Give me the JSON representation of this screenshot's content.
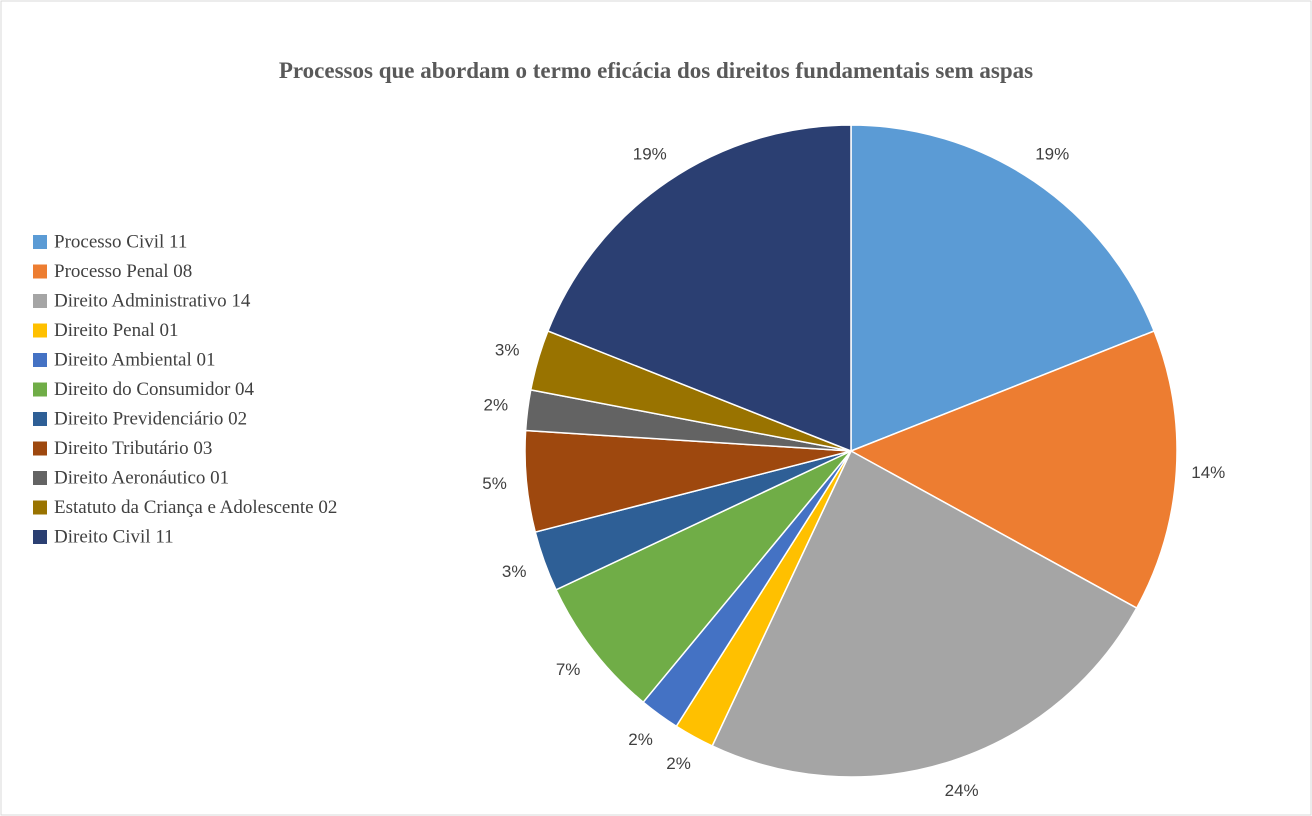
{
  "chart_data": {
    "type": "pie",
    "title": "Processos que abordam o termo eficácia dos direitos fundamentais sem aspas",
    "categories": [
      "Processo Civil 11",
      "Processo Penal 08",
      "Direito Administrativo 14",
      "Direito Penal 01",
      "Direito Ambiental 01",
      "Direito do Consumidor 04",
      "Direito Previdenciário 02",
      "Direito Tributário 03",
      "Direito Aeronáutico 01",
      "Estatuto da Criança e Adolescente 02",
      "Direito Civil 11"
    ],
    "values": [
      19,
      14,
      24,
      2,
      2,
      7,
      3,
      5,
      2,
      3,
      19
    ],
    "value_labels": [
      "19%",
      "14%",
      "24%",
      "2%",
      "2%",
      "7%",
      "3%",
      "5%",
      "2%",
      "3%",
      "19%"
    ],
    "colors": [
      "#5b9bd5",
      "#ed7d31",
      "#a5a5a5",
      "#ffc000",
      "#4472c4",
      "#70ad47",
      "#2e5f96",
      "#9e480e",
      "#636363",
      "#997300",
      "#2b3f72"
    ],
    "legend": "left"
  }
}
